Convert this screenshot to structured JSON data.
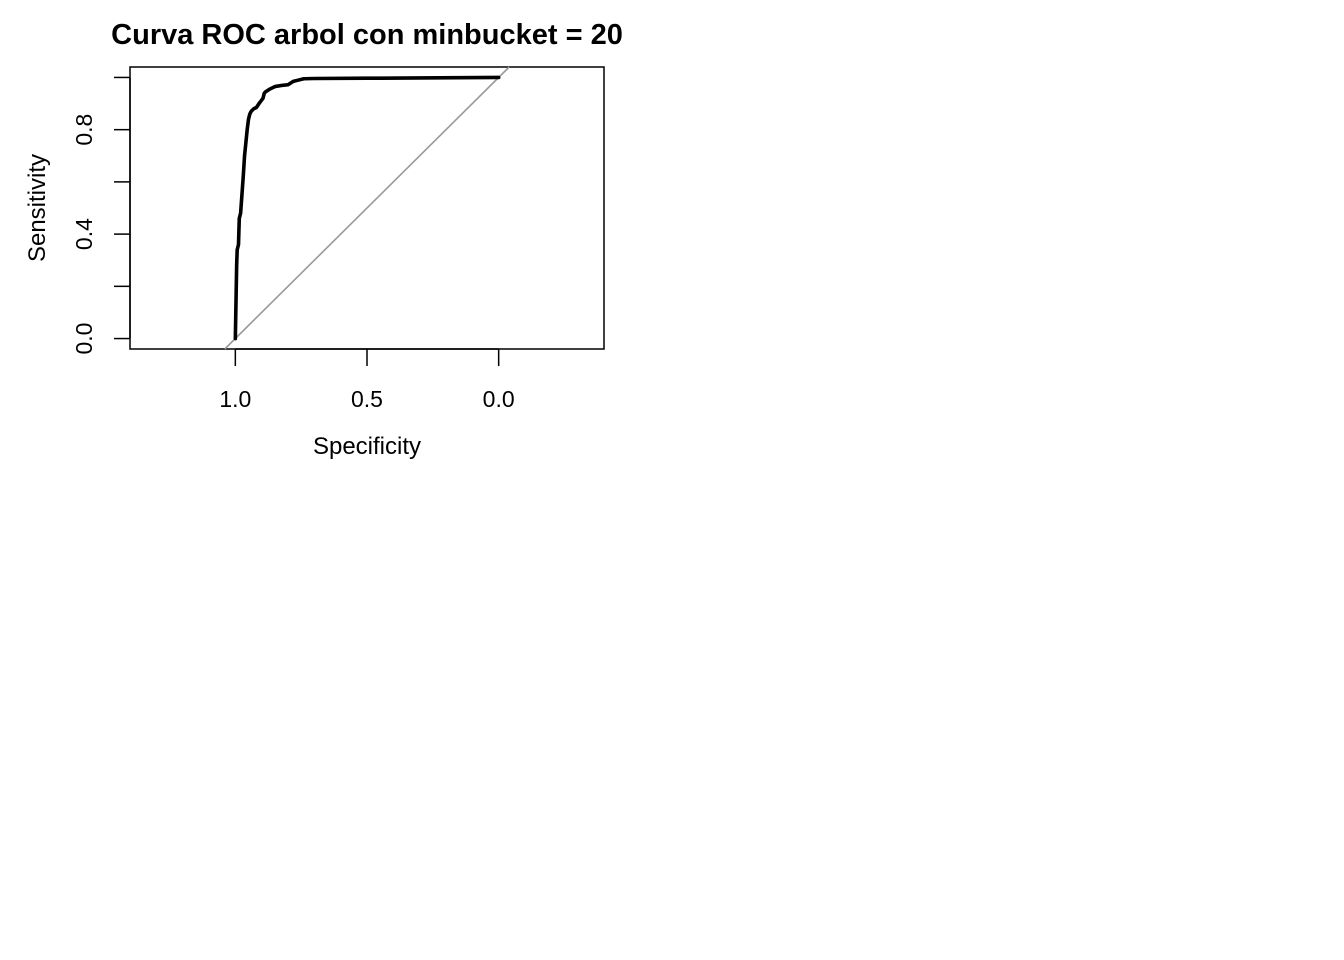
{
  "chart_data": {
    "type": "line",
    "title": "Curva ROC arbol con minbucket = 20",
    "xlabel": "Specificity",
    "ylabel": "Sensitivity",
    "x_reversed": true,
    "xlim": [
      1.4,
      -0.4
    ],
    "ylim": [
      -0.04,
      1.04
    ],
    "xticks": [
      1.0,
      0.5,
      0.0
    ],
    "xtick_labels": [
      "1.0",
      "0.5",
      "0.0"
    ],
    "yticks": [
      0.0,
      0.2,
      0.4,
      0.6,
      0.8,
      1.0
    ],
    "ytick_labels": [
      "0.0",
      "",
      "0.4",
      "",
      "0.8",
      ""
    ],
    "grid": false,
    "colors": {
      "roc": "#000000",
      "reference": "#999999"
    },
    "series": [
      {
        "x": [
          1.0,
          0.995,
          0.993,
          0.988,
          0.985,
          0.98,
          0.975,
          0.97,
          0.965,
          0.96,
          0.955,
          0.95,
          0.945,
          0.94,
          0.93,
          0.92,
          0.91,
          0.895,
          0.89,
          0.885,
          0.87,
          0.85,
          0.82,
          0.8,
          0.78,
          0.76,
          0.74,
          0.7,
          0.5,
          0.3,
          0.0
        ],
        "y": [
          0.0,
          0.28,
          0.34,
          0.36,
          0.46,
          0.48,
          0.55,
          0.62,
          0.7,
          0.75,
          0.8,
          0.84,
          0.86,
          0.87,
          0.88,
          0.885,
          0.9,
          0.92,
          0.94,
          0.945,
          0.955,
          0.965,
          0.97,
          0.972,
          0.985,
          0.99,
          0.995,
          0.996,
          0.997,
          0.998,
          1.0
        ]
      },
      {
        "x": [
          1.04,
          -0.04
        ],
        "y": [
          -0.04,
          1.04
        ]
      }
    ]
  }
}
